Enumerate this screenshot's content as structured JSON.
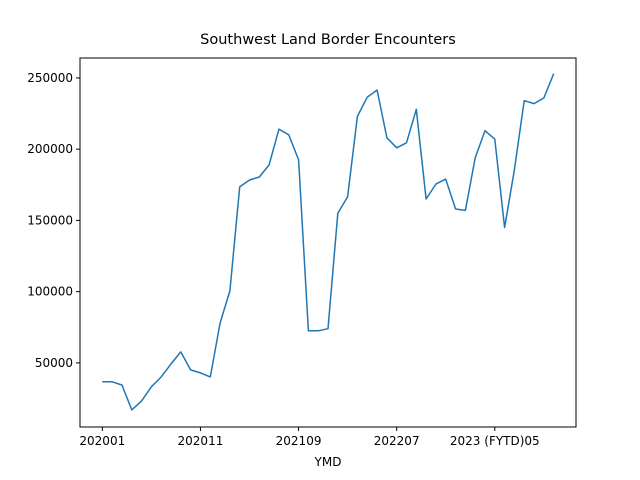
{
  "chart_data": {
    "type": "line",
    "title": "Southwest Land Border Encounters",
    "x_label": "YMD",
    "categories": [
      "202001",
      null,
      null,
      null,
      null,
      null,
      null,
      null,
      null,
      null,
      "202011",
      null,
      null,
      null,
      null,
      null,
      null,
      null,
      null,
      null,
      "202109",
      null,
      null,
      null,
      null,
      null,
      null,
      null,
      null,
      null,
      "202207",
      null,
      null,
      null,
      null,
      null,
      null,
      null,
      null,
      null,
      "2023 (FYTD)05",
      null,
      null,
      null,
      null,
      null,
      null
    ],
    "values": [
      36700,
      36700,
      34500,
      17000,
      23300,
      33200,
      40200,
      49300,
      57700,
      45100,
      43000,
      40200,
      78000,
      100500,
      173500,
      178400,
      180500,
      189000,
      214000,
      210000,
      192500,
      72500,
      72500,
      74000,
      155000,
      166500,
      223000,
      236500,
      241500,
      208000,
      201000,
      204500,
      228000,
      165000,
      175500,
      179000,
      158000,
      157000,
      194000,
      213000,
      207000,
      145000,
      185500,
      234000,
      232000,
      236000,
      253000
    ],
    "color": "#1f77b4",
    "ylim": [
      5000,
      264000
    ],
    "yticks": [
      50000,
      100000,
      150000,
      200000,
      250000
    ]
  }
}
